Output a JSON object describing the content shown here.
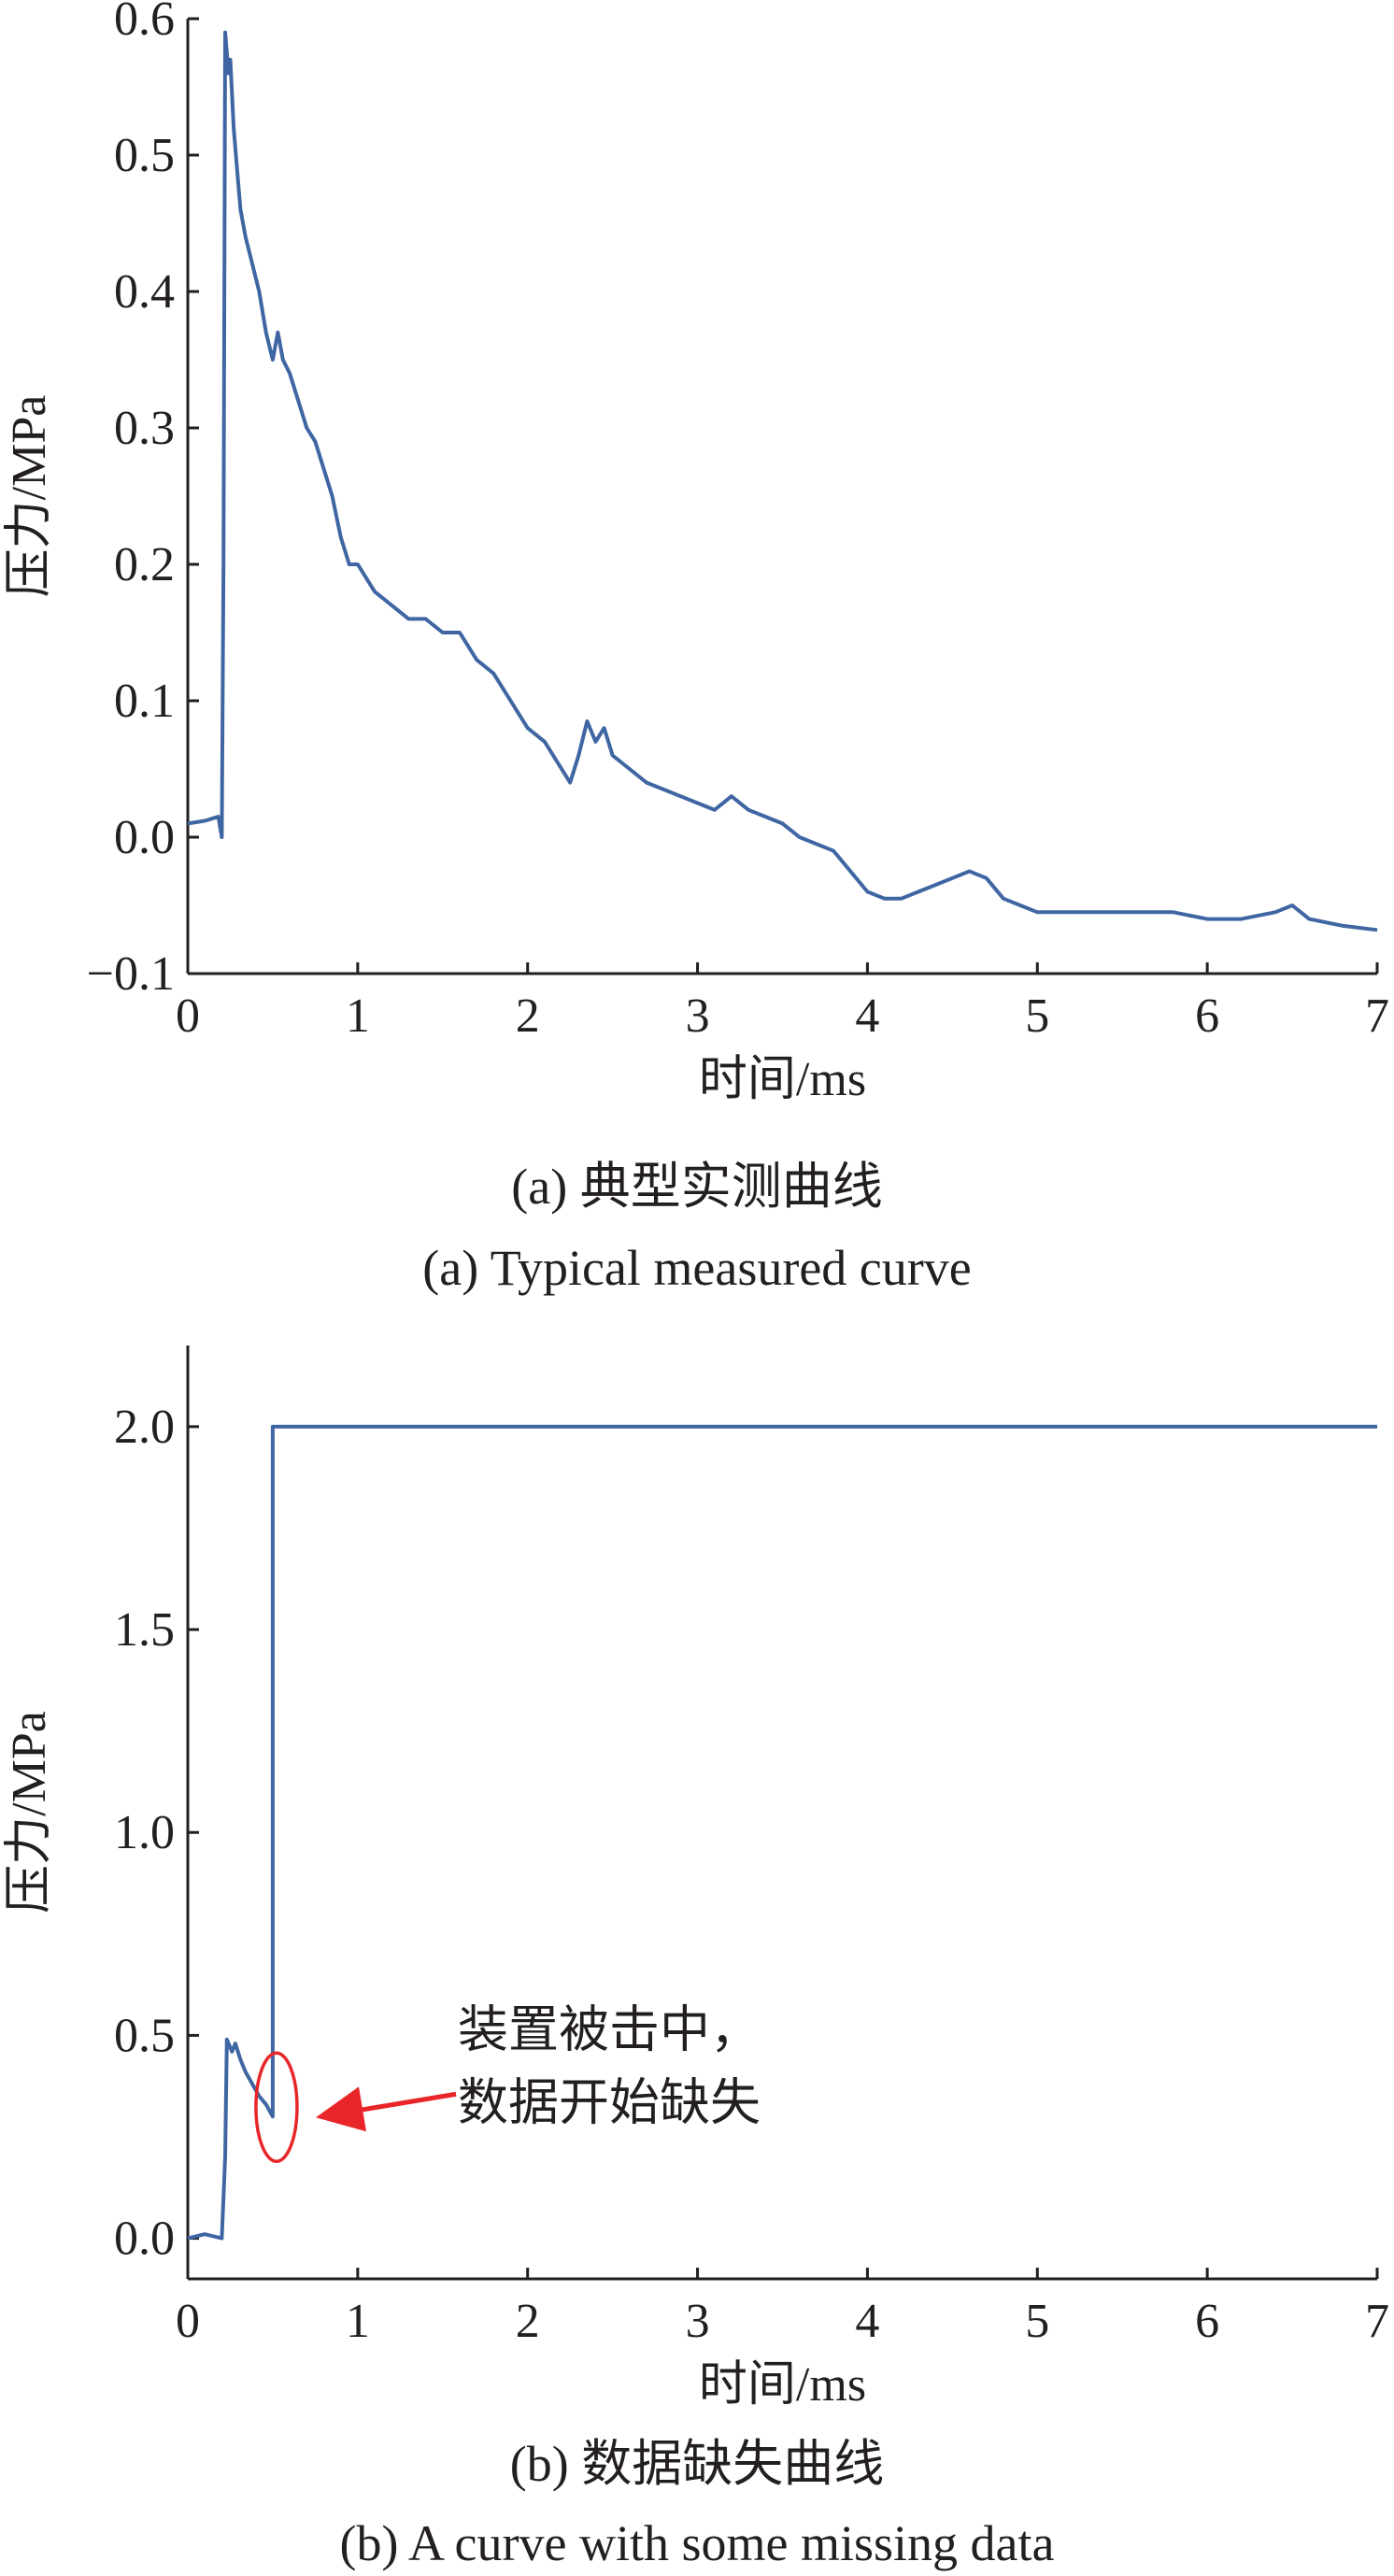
{
  "chart_data": [
    {
      "type": "line",
      "xlabel": "时间/ms",
      "ylabel": "压力/MPa",
      "xlim": [
        0,
        7
      ],
      "ylim": [
        -0.1,
        0.6
      ],
      "xticks": [
        "0",
        "1",
        "2",
        "3",
        "4",
        "5",
        "6",
        "7"
      ],
      "yticks": [
        "−0.1",
        "0.0",
        "0.1",
        "0.2",
        "0.3",
        "0.4",
        "0.5",
        "0.6"
      ],
      "grid": false,
      "caption_cn": "(a) 典型实测曲线",
      "caption_en": "(a) Typical measured curve",
      "series": [
        {
          "color": "#3f66a3",
          "x": [
            0,
            0.1,
            0.18,
            0.2,
            0.21,
            0.22,
            0.24,
            0.25,
            0.27,
            0.29,
            0.31,
            0.34,
            0.38,
            0.42,
            0.46,
            0.5,
            0.53,
            0.56,
            0.6,
            0.65,
            0.7,
            0.75,
            0.8,
            0.85,
            0.9,
            0.95,
            1.0,
            1.1,
            1.2,
            1.3,
            1.4,
            1.5,
            1.6,
            1.7,
            1.8,
            1.9,
            2.0,
            2.1,
            2.2,
            2.25,
            2.3,
            2.35,
            2.4,
            2.45,
            2.5,
            2.6,
            2.7,
            2.8,
            2.9,
            3.0,
            3.1,
            3.2,
            3.3,
            3.4,
            3.5,
            3.6,
            3.8,
            4.0,
            4.1,
            4.2,
            4.3,
            4.4,
            4.5,
            4.6,
            4.7,
            4.8,
            4.9,
            5.0,
            5.2,
            5.4,
            5.6,
            5.8,
            6.0,
            6.2,
            6.4,
            6.5,
            6.6,
            6.8,
            7.0
          ],
          "y": [
            0.01,
            0.012,
            0.015,
            0.0,
            0.2,
            0.59,
            0.56,
            0.57,
            0.52,
            0.49,
            0.46,
            0.44,
            0.42,
            0.4,
            0.37,
            0.35,
            0.37,
            0.35,
            0.34,
            0.32,
            0.3,
            0.29,
            0.27,
            0.25,
            0.22,
            0.2,
            0.2,
            0.18,
            0.17,
            0.16,
            0.16,
            0.15,
            0.15,
            0.13,
            0.12,
            0.1,
            0.08,
            0.07,
            0.05,
            0.04,
            0.06,
            0.085,
            0.07,
            0.08,
            0.06,
            0.05,
            0.04,
            0.035,
            0.03,
            0.025,
            0.02,
            0.03,
            0.02,
            0.015,
            0.01,
            0.0,
            -0.01,
            -0.04,
            -0.045,
            -0.045,
            -0.04,
            -0.035,
            -0.03,
            -0.025,
            -0.03,
            -0.045,
            -0.05,
            -0.055,
            -0.055,
            -0.055,
            -0.055,
            -0.055,
            -0.06,
            -0.06,
            -0.055,
            -0.05,
            -0.06,
            -0.065,
            -0.068
          ]
        }
      ]
    },
    {
      "type": "line",
      "xlabel": "时间/ms",
      "ylabel": "压力/MPa",
      "xlim": [
        0,
        7
      ],
      "ylim": [
        -0.1,
        2.2
      ],
      "xticks": [
        "0",
        "1",
        "2",
        "3",
        "4",
        "5",
        "6",
        "7"
      ],
      "yticks": [
        "0.0",
        "0.5",
        "1.0",
        "1.5",
        "2.0"
      ],
      "grid": false,
      "caption_cn": "(b) 数据缺失曲线",
      "caption_en": "(b) A curve with some missing data",
      "annotation": {
        "text_line1": "装置被击中，",
        "text_line2": "数据开始缺失",
        "ellipse_center": [
          0.5,
          0.3
        ],
        "arrow_color": "#e8262a"
      },
      "series": [
        {
          "color": "#3f66a3",
          "x": [
            0,
            0.1,
            0.2,
            0.22,
            0.23,
            0.26,
            0.28,
            0.31,
            0.34,
            0.38,
            0.42,
            0.46,
            0.5,
            0.5,
            7.0
          ],
          "y": [
            0.0,
            0.01,
            0.0,
            0.2,
            0.49,
            0.46,
            0.48,
            0.44,
            0.41,
            0.38,
            0.35,
            0.33,
            0.3,
            2.0,
            2.0
          ]
        }
      ]
    }
  ]
}
